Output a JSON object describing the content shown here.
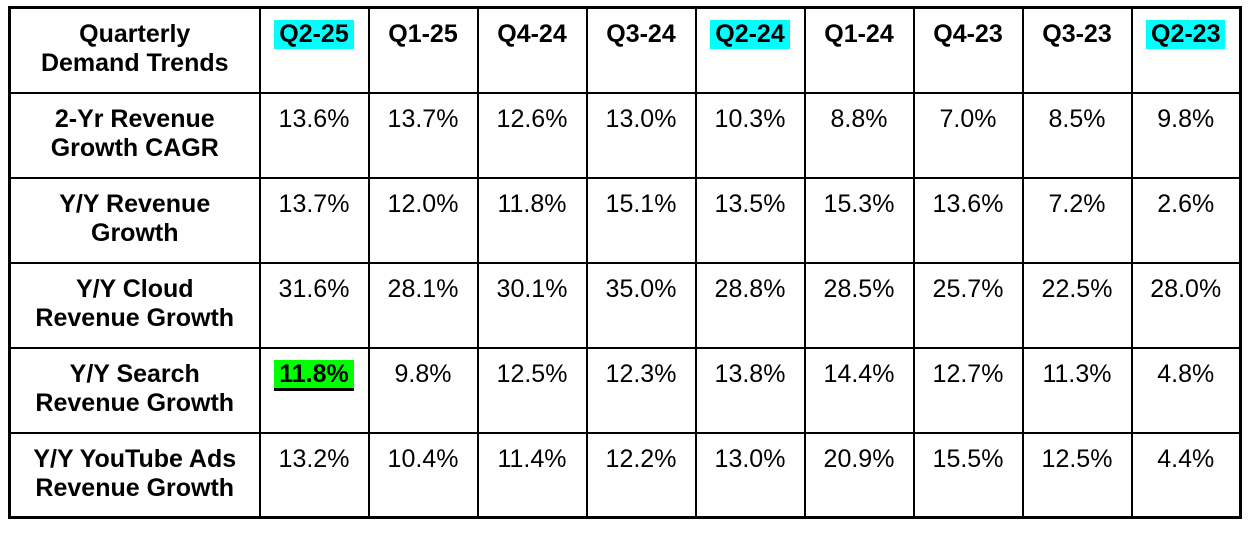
{
  "colors": {
    "highlight-cyan": "#00ffff",
    "highlight-green": "#00ff00",
    "border": "#000000",
    "text": "#000000",
    "background": "#ffffff"
  },
  "table": {
    "title_lines": [
      "Quarterly",
      "Demand Trends"
    ],
    "header": {
      "columns": [
        {
          "label": "Q2-25",
          "highlighted": true
        },
        {
          "label": "Q1-25",
          "highlighted": false
        },
        {
          "label": "Q4-24",
          "highlighted": false
        },
        {
          "label": "Q3-24",
          "highlighted": false
        },
        {
          "label": "Q2-24",
          "highlighted": true
        },
        {
          "label": "Q1-24",
          "highlighted": false
        },
        {
          "label": "Q4-23",
          "highlighted": false
        },
        {
          "label": "Q3-23",
          "highlighted": false
        },
        {
          "label": "Q2-23",
          "highlighted": true
        }
      ]
    },
    "rows": [
      {
        "label_lines": [
          "2-Yr Revenue",
          "Growth CAGR"
        ],
        "values": [
          "13.6%",
          "13.7%",
          "12.6%",
          "13.0%",
          "10.3%",
          "8.8%",
          "7.0%",
          "8.5%",
          "9.8%"
        ]
      },
      {
        "label_lines": [
          "Y/Y Revenue",
          "Growth"
        ],
        "values": [
          "13.7%",
          "12.0%",
          "11.8%",
          "15.1%",
          "13.5%",
          "15.3%",
          "13.6%",
          "7.2%",
          "2.6%"
        ]
      },
      {
        "label_lines": [
          "Y/Y Cloud",
          "Revenue Growth"
        ],
        "values": [
          "31.6%",
          "28.1%",
          "30.1%",
          "35.0%",
          "28.8%",
          "28.5%",
          "25.7%",
          "22.5%",
          "28.0%"
        ]
      },
      {
        "label_lines": [
          "Y/Y Search",
          "Revenue Growth"
        ],
        "values": [
          "11.8%",
          "9.8%",
          "12.5%",
          "12.3%",
          "13.8%",
          "14.4%",
          "12.7%",
          "11.3%",
          "4.8%"
        ]
      },
      {
        "label_lines": [
          "Y/Y YouTube Ads",
          "Revenue Growth"
        ],
        "values": [
          "13.2%",
          "10.4%",
          "11.4%",
          "12.2%",
          "13.0%",
          "20.9%",
          "15.5%",
          "12.5%",
          "4.4%"
        ]
      }
    ]
  },
  "chart_data": {
    "type": "table",
    "title": "Quarterly Demand Trends",
    "categories": [
      "Q2-25",
      "Q1-25",
      "Q4-24",
      "Q3-24",
      "Q2-24",
      "Q1-24",
      "Q4-23",
      "Q3-23",
      "Q2-23"
    ],
    "series": [
      {
        "name": "2-Yr Revenue Growth CAGR",
        "values": [
          13.6,
          13.7,
          12.6,
          13.0,
          10.3,
          8.8,
          7.0,
          8.5,
          9.8
        ]
      },
      {
        "name": "Y/Y Revenue Growth",
        "values": [
          13.7,
          12.0,
          11.8,
          15.1,
          13.5,
          15.3,
          13.6,
          7.2,
          2.6
        ]
      },
      {
        "name": "Y/Y Cloud Revenue Growth",
        "values": [
          31.6,
          28.1,
          30.1,
          35.0,
          28.8,
          28.5,
          25.7,
          22.5,
          28.0
        ]
      },
      {
        "name": "Y/Y Search Revenue Growth",
        "values": [
          11.8,
          9.8,
          12.5,
          12.3,
          13.8,
          14.4,
          12.7,
          11.3,
          4.8
        ]
      },
      {
        "name": "Y/Y YouTube Ads Revenue Growth",
        "values": [
          13.2,
          10.4,
          11.4,
          12.2,
          13.0,
          20.9,
          15.5,
          12.5,
          4.4
        ]
      }
    ],
    "unit": "%",
    "highlighted_columns": [
      "Q2-25",
      "Q2-24",
      "Q2-23"
    ],
    "highlighted_cell": {
      "row": "Y/Y Search Revenue Growth",
      "column": "Q2-25",
      "value": 11.8,
      "style": "green-highlight-bold-underline"
    }
  }
}
